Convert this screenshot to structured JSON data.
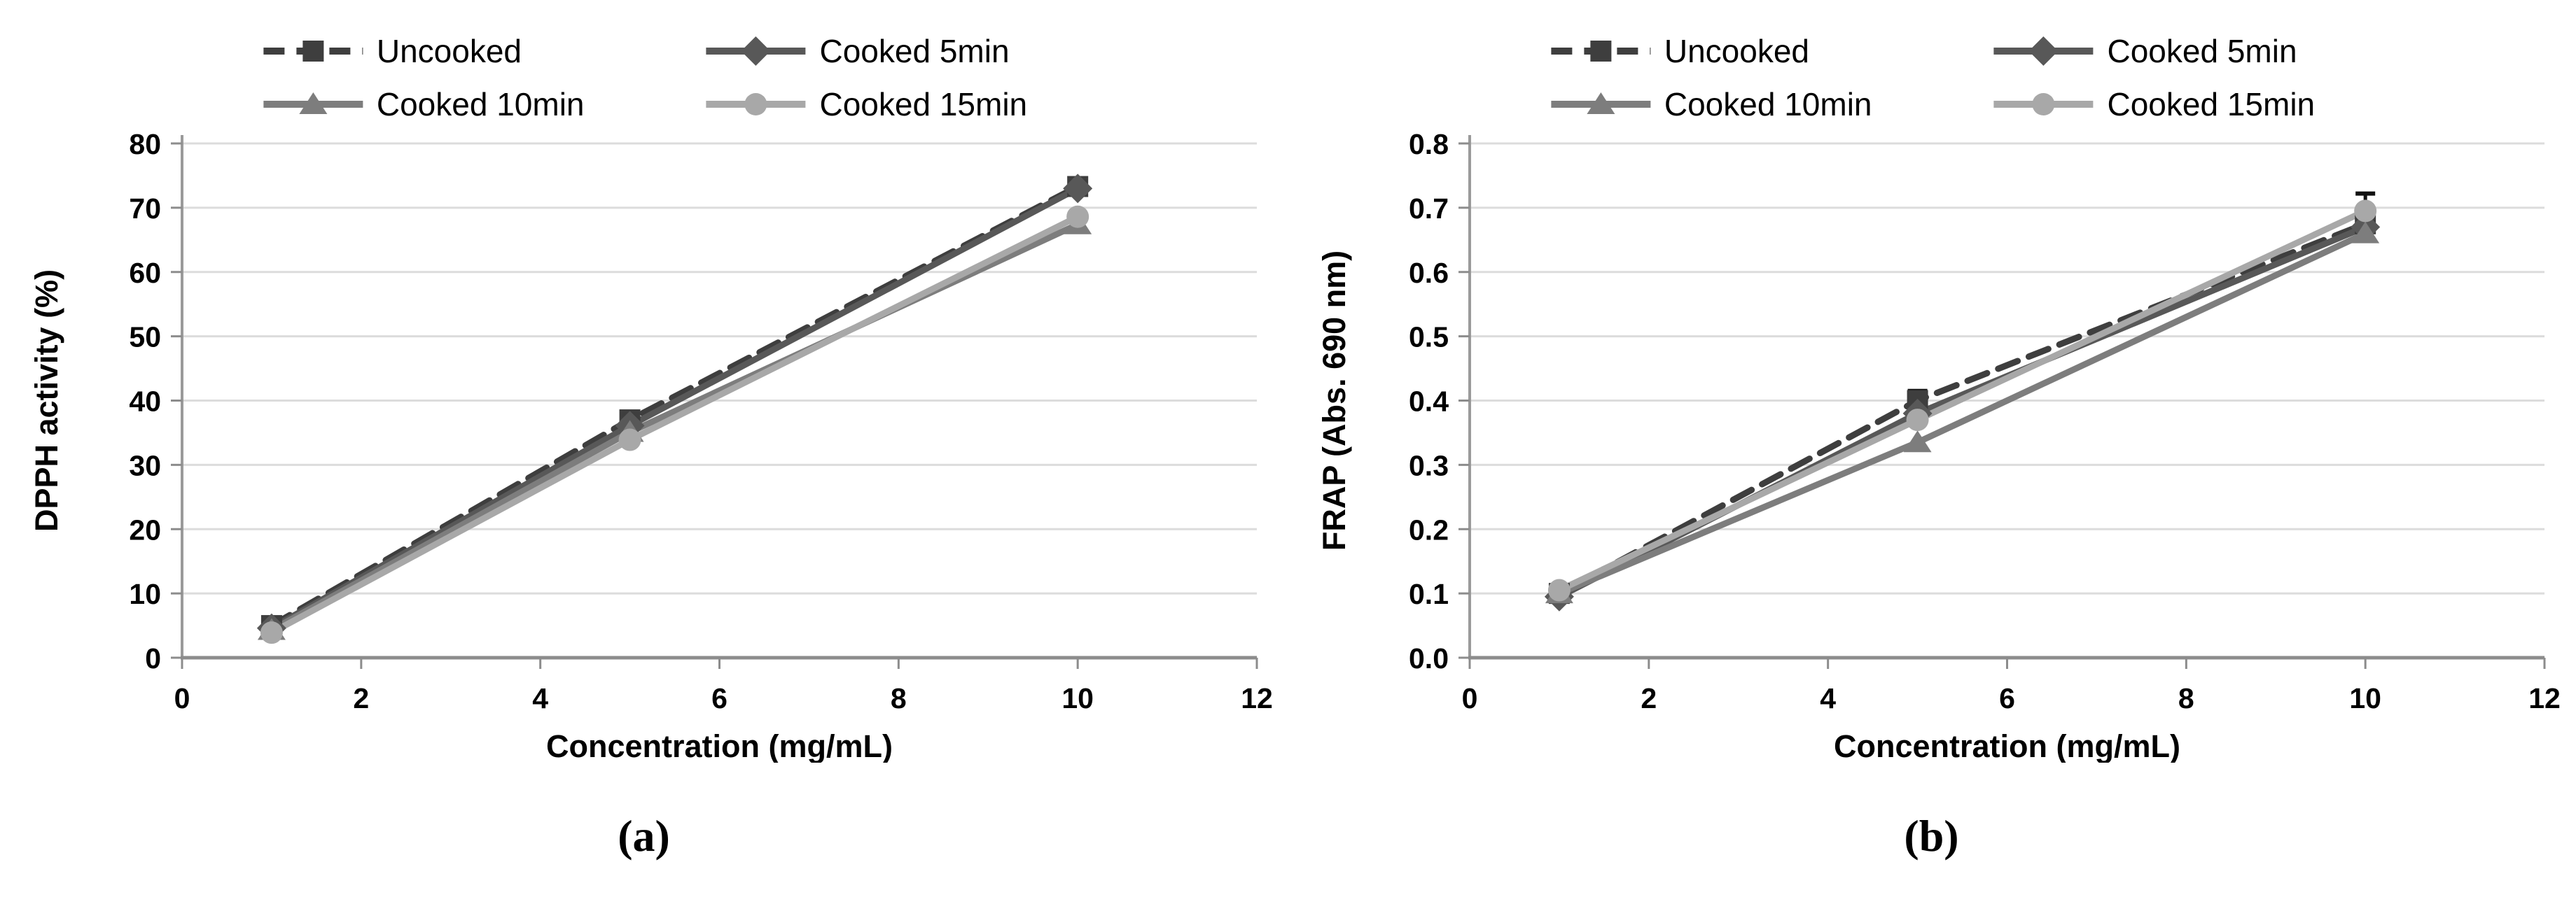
{
  "figure": {
    "background": "#ffffff",
    "description": "Two-panel line chart figure"
  },
  "captions": {
    "a": "(a)",
    "b": "(b)"
  },
  "colors": {
    "grid": "#dcdcdc",
    "axis_y": "#9a9a9a",
    "axis_x": "#8c8c8c",
    "tick_mark": "#8c8c8c",
    "error_bar": "#111111",
    "text": "#000000"
  },
  "chart_data": [
    {
      "id": "a",
      "type": "line",
      "title": "",
      "xlabel": "Concentration (mg/mL)",
      "ylabel": "DPPH activity (%)",
      "xlim": [
        0,
        12
      ],
      "ylim": [
        0,
        80
      ],
      "xticks": [
        0,
        2,
        4,
        6,
        8,
        10,
        12
      ],
      "xtick_labels": [
        "0",
        "2",
        "4",
        "6",
        "8",
        "10",
        "12"
      ],
      "yticks": [
        0,
        10,
        20,
        30,
        40,
        50,
        60,
        70,
        80
      ],
      "ytick_labels": [
        "0",
        "10",
        "20",
        "30",
        "40",
        "50",
        "60",
        "70",
        "80"
      ],
      "grid": "horizontal",
      "legend_position": "top-center",
      "x": [
        1,
        5,
        10
      ],
      "series": [
        {
          "name": "Uncooked",
          "marker": "square",
          "line": "dashed",
          "color": "#3e3e3e",
          "values": [
            5.0,
            37.0,
            73.3
          ]
        },
        {
          "name": "Cooked 5min",
          "marker": "diamond",
          "line": "solid",
          "color": "#585858",
          "values": [
            4.6,
            36.1,
            73.0
          ]
        },
        {
          "name": "Cooked 10min",
          "marker": "triangle",
          "line": "solid",
          "color": "#7d7d7d",
          "values": [
            4.3,
            35.1,
            67.4
          ]
        },
        {
          "name": "Cooked 15min",
          "marker": "circle",
          "line": "solid",
          "color": "#a8a8a8",
          "values": [
            3.9,
            33.9,
            68.6
          ]
        }
      ],
      "error_bars": [
        {
          "series": "Uncooked",
          "point": 2,
          "plus": 1.0
        }
      ]
    },
    {
      "id": "b",
      "type": "line",
      "title": "",
      "xlabel": "Concentration (mg/mL)",
      "ylabel": "FRAP (Abs. 690 nm)",
      "xlim": [
        0,
        12
      ],
      "ylim": [
        0,
        0.8
      ],
      "xticks": [
        0,
        2,
        4,
        6,
        8,
        10,
        12
      ],
      "xtick_labels": [
        "0",
        "2",
        "4",
        "6",
        "8",
        "10",
        "12"
      ],
      "yticks": [
        0,
        0.1,
        0.2,
        0.3,
        0.4,
        0.5,
        0.6,
        0.7,
        0.8
      ],
      "ytick_labels": [
        "0.0",
        "0.1",
        "0.2",
        "0.3",
        "0.4",
        "0.5",
        "0.6",
        "0.7",
        "0.8"
      ],
      "grid": "horizontal",
      "legend_position": "top-center",
      "x": [
        1,
        5,
        10
      ],
      "series": [
        {
          "name": "Uncooked",
          "marker": "square",
          "line": "dashed",
          "color": "#3e3e3e",
          "values": [
            0.1,
            0.4,
            0.675
          ]
        },
        {
          "name": "Cooked 5min",
          "marker": "diamond",
          "line": "solid",
          "color": "#585858",
          "values": [
            0.095,
            0.38,
            0.67
          ]
        },
        {
          "name": "Cooked 10min",
          "marker": "triangle",
          "line": "solid",
          "color": "#7d7d7d",
          "values": [
            0.1,
            0.335,
            0.66
          ]
        },
        {
          "name": "Cooked 15min",
          "marker": "circle",
          "line": "solid",
          "color": "#a8a8a8",
          "values": [
            0.105,
            0.37,
            0.695
          ]
        }
      ],
      "error_bars": [
        {
          "series": "Uncooked",
          "point": 1,
          "plus": 0.015
        },
        {
          "series": "Cooked 15min",
          "point": 2,
          "plus": 0.027
        }
      ]
    }
  ]
}
